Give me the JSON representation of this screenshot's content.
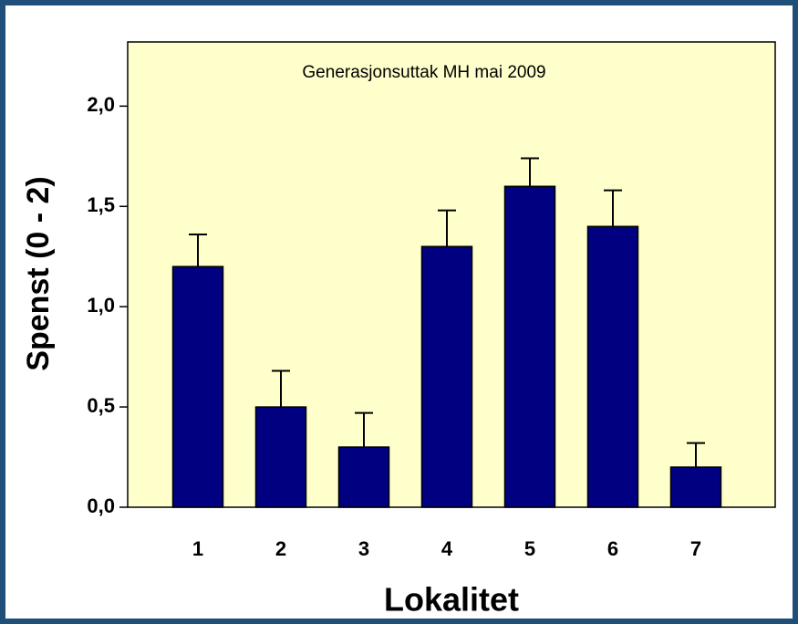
{
  "chart_data": {
    "type": "bar",
    "title": "Generasjonsuttak MH mai 2009",
    "x_label": "Lokalitet",
    "y_label": "Spenst (0 - 2)",
    "categories": [
      "1",
      "2",
      "3",
      "4",
      "5",
      "6",
      "7"
    ],
    "values": [
      1.2,
      0.5,
      0.3,
      1.3,
      1.6,
      1.4,
      0.2
    ],
    "errors": [
      0.16,
      0.18,
      0.17,
      0.18,
      0.14,
      0.18,
      0.12
    ],
    "color": "#000080",
    "ylim": [
      0,
      2.32
    ],
    "yticks": [
      {
        "value": 0,
        "label": "0,0"
      },
      {
        "value": 0.5,
        "label": "0,5"
      },
      {
        "value": 1,
        "label": "1,0"
      },
      {
        "value": 1.5,
        "label": "1,5"
      },
      {
        "value": 2,
        "label": "2,0"
      }
    ],
    "grid": false
  }
}
